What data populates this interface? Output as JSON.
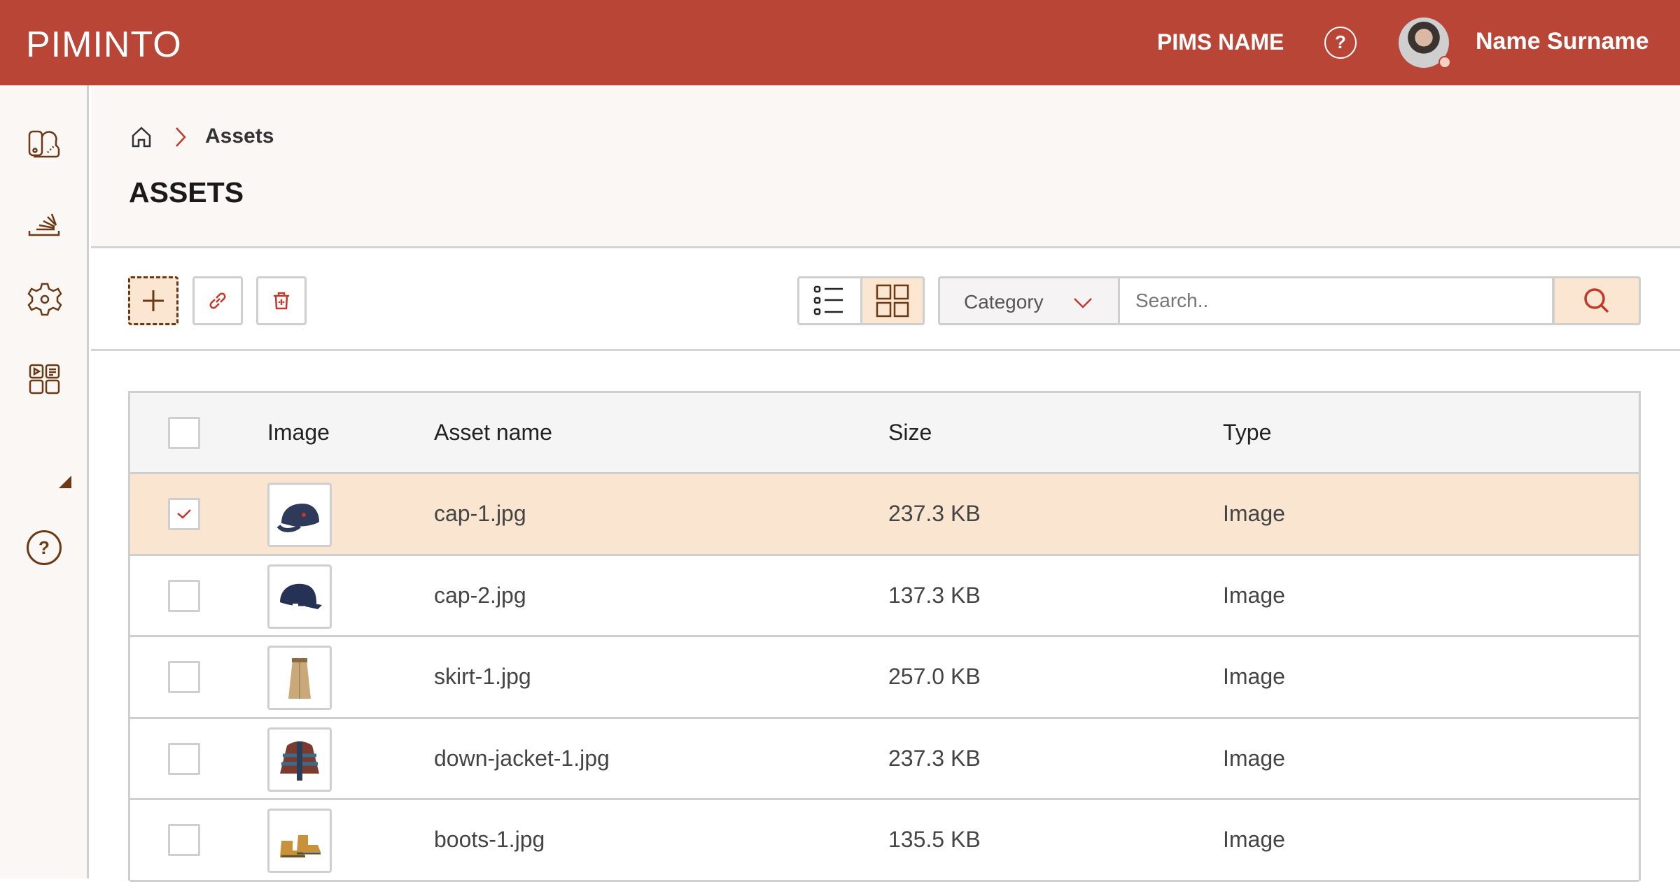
{
  "header": {
    "logo": "PIMINTO",
    "pims_name": "PIMS NAME",
    "help": "?",
    "user_name": "Name Surname"
  },
  "sidebar": {
    "items": [
      {
        "icon": "catalog-icon"
      },
      {
        "icon": "import-icon"
      },
      {
        "icon": "settings-icon"
      },
      {
        "icon": "assets-icon"
      },
      {
        "icon": "help-icon",
        "label": "?"
      }
    ]
  },
  "breadcrumb": {
    "current": "Assets"
  },
  "page_title": "ASSETS",
  "toolbar": {
    "category_label": "Category",
    "search_placeholder": "Search..",
    "view_mode": "grid"
  },
  "table": {
    "columns": [
      "Image",
      "Asset name",
      "Size",
      "Type"
    ],
    "rows": [
      {
        "selected": true,
        "name": "cap-1.jpg",
        "size": "237.3 KB",
        "type": "Image",
        "thumb_color": "#2f3a5a"
      },
      {
        "selected": false,
        "name": "cap-2.jpg",
        "size": "137.3 KB",
        "type": "Image",
        "thumb_color": "#263255"
      },
      {
        "selected": false,
        "name": "skirt-1.jpg",
        "size": "257.0 KB",
        "type": "Image",
        "thumb_color": "#c9a87a"
      },
      {
        "selected": false,
        "name": "down-jacket-1.jpg",
        "size": "237.3 KB",
        "type": "Image",
        "thumb_color": "#7a3b2e"
      },
      {
        "selected": false,
        "name": "boots-1.jpg",
        "size": "135.5 KB",
        "type": "Image",
        "thumb_color": "#c8913a"
      }
    ]
  },
  "colors": {
    "brand": "#b94537",
    "accent_bg": "#fbe6d2",
    "icon_brown": "#6b3a14"
  }
}
